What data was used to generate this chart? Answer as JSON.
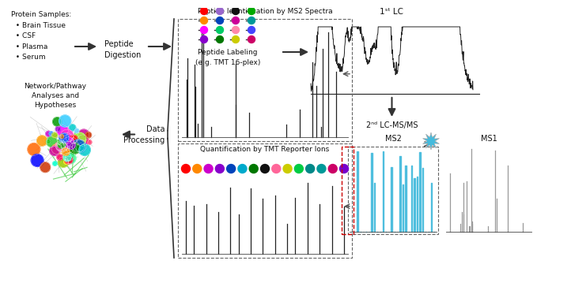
{
  "bg_color": "#ffffff",
  "protein_samples_text": "Protein Samples:\n  • Brain Tissue\n  • CSF\n  • Plasma\n  • Serum",
  "peptide_digestion_text": "Peptide\nDigestion",
  "peptide_labeling_text": "Peptide Labeling\n(e.g. TMT 16-plex)",
  "lc1_text": "1ˢᵗ LC",
  "lc2_text": "2ⁿᵈ LC-MS/MS",
  "ms2_text": "MS2",
  "ms1_text": "MS1",
  "ms2_id_text": "Peptide Identification by MS2 Spectra",
  "quant_text": "Quantification by TMT Reporter Ions",
  "data_proc_text": "Data\nProcessing",
  "network_text": "Network/Pathway\nAnalyses and\nHypotheses",
  "tmt_colors_row1": [
    "#ff0000",
    "#9966cc",
    "#111111",
    "#00aa00"
  ],
  "tmt_colors_row2": [
    "#ff8800",
    "#0044bb",
    "#cc0099",
    "#009999"
  ],
  "tmt_colors_row3": [
    "#ff00ff",
    "#00cc66",
    "#ff88aa",
    "#4444ff"
  ],
  "tmt_colors_row4": [
    "#8800cc",
    "#007700",
    "#cccc00",
    "#cc0066"
  ],
  "reporter_ion_colors": [
    "#ff0000",
    "#ff8800",
    "#cc00cc",
    "#8800cc",
    "#0044bb",
    "#00aacc",
    "#007700",
    "#111111",
    "#ff6699",
    "#cccc00",
    "#00cc44",
    "#008888",
    "#009999",
    "#cc0066",
    "#7700cc"
  ],
  "ms2_color": "#44bbdd",
  "ms1_color": "#999999",
  "spectrum_color": "#222222",
  "arrow_color": "#444444",
  "dashed_color": "#666666"
}
